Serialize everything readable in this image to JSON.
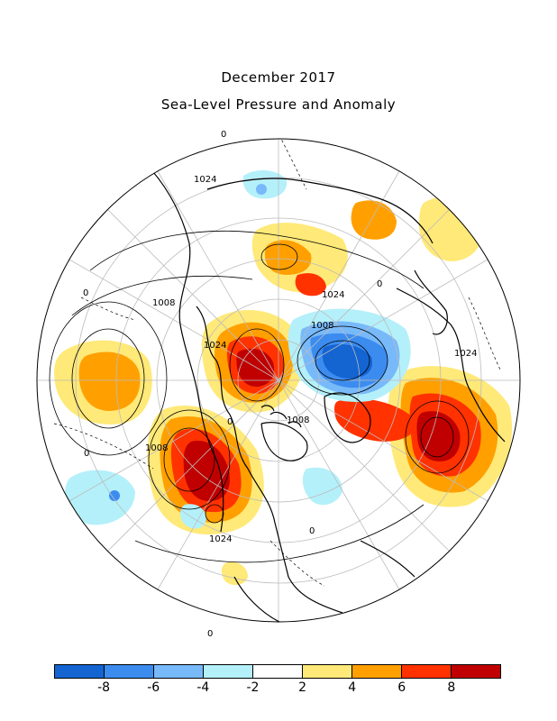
{
  "title": {
    "line1": "December 2017",
    "line2": "Sea-Level Pressure and Anomaly"
  },
  "colorbar": {
    "bins": [
      "#1464d2",
      "#3c8cf0",
      "#78b9fa",
      "#b4f0fa",
      "#ffffff",
      "#ffe978",
      "#ffa000",
      "#ff3200",
      "#c00000"
    ],
    "ticks": [
      "-8",
      "-6",
      "-4",
      "-2",
      "2",
      "4",
      "6",
      "8"
    ]
  },
  "contour_labels": [
    "1024",
    "1008",
    "1024",
    "1008",
    "1024",
    "1024",
    "1008",
    "1008",
    "1024",
    "0",
    "0",
    "0",
    "0",
    "0",
    "0",
    "0"
  ],
  "anomaly_colors": {
    "strong_positive": "#c00000",
    "positive": "#ff3200",
    "moderate_positive": "#ffa000",
    "weak_positive": "#ffe978",
    "weak_negative": "#b4f0fa",
    "moderate_negative": "#78b9fa",
    "negative": "#3c8cf0",
    "strong_negative": "#1464d2"
  }
}
